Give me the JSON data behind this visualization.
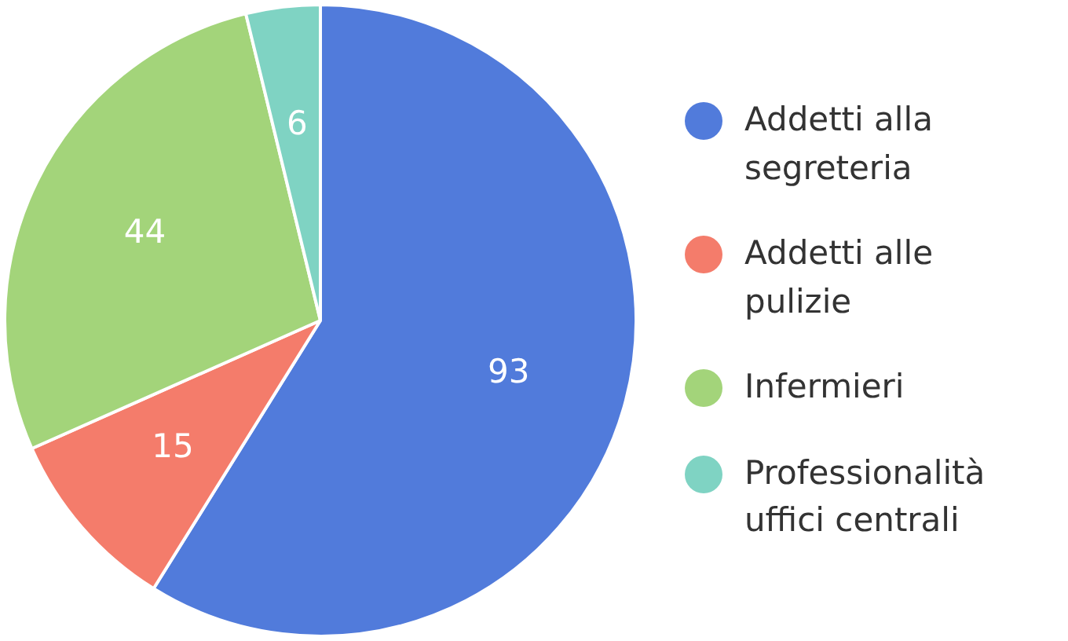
{
  "chart_data": {
    "type": "pie",
    "categories": [
      "Addetti alla segreteria",
      "Addetti alle pulizie",
      "Infermieri",
      "Professionalità uffici centrali"
    ],
    "values": [
      93,
      15,
      44,
      6
    ],
    "colors": [
      "#517bdb",
      "#f47c6b",
      "#a3d47a",
      "#7fd3c3"
    ],
    "data_labels": true,
    "legend": "right"
  }
}
